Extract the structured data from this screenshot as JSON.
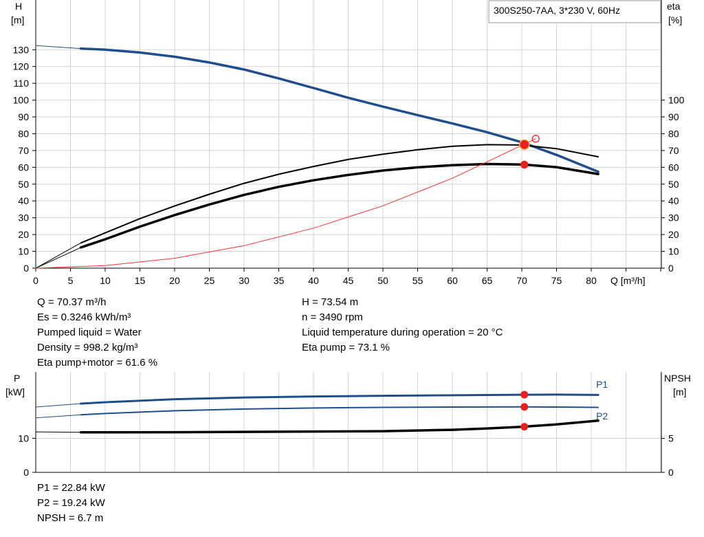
{
  "chart_data": [
    {
      "type": "line",
      "title": "300S250-7AA, 3*230 V, 60Hz",
      "xlabel": "Q [m³/h]",
      "ylabel_left": [
        "H",
        "[m]"
      ],
      "ylabel_right": [
        "eta",
        "[%]"
      ],
      "xlim": [
        0,
        87
      ],
      "ylim_left": [
        0,
        130
      ],
      "ylim_right": [
        0,
        100
      ],
      "grid": true,
      "x_ticks": [
        0,
        5,
        10,
        15,
        20,
        25,
        30,
        35,
        40,
        45,
        50,
        55,
        60,
        65,
        70,
        75,
        80
      ],
      "y_ticks_left": [
        0,
        10,
        20,
        30,
        40,
        50,
        60,
        70,
        80,
        90,
        100,
        110,
        120,
        130
      ],
      "y_ticks_right": [
        0,
        10,
        20,
        30,
        40,
        50,
        60,
        70,
        80,
        90,
        100
      ],
      "series": [
        {
          "axis": "left",
          "color": "#1f4e8c",
          "width": 3.5,
          "x": [
            6.5,
            10,
            15,
            20,
            25,
            30,
            35,
            40,
            45,
            50,
            55,
            60,
            65,
            70,
            75,
            81
          ],
          "y": [
            130.7,
            130,
            128.3,
            125.8,
            122.4,
            118.2,
            112.9,
            107.2,
            101.4,
            96.1,
            91.1,
            86.1,
            80.9,
            74.9,
            67.4,
            57.4
          ],
          "ext_x": [
            0,
            6.5
          ],
          "ext_y": [
            132.5,
            130.7
          ]
        },
        {
          "axis": "right",
          "color": "#000000",
          "width": 2,
          "x": [
            6.5,
            10,
            15,
            20,
            25,
            30,
            35,
            40,
            45,
            50,
            55,
            60,
            65,
            70,
            75,
            81
          ],
          "y": [
            15,
            21,
            29.5,
            37,
            44,
            50.5,
            55.9,
            60.5,
            64.7,
            67.8,
            70.5,
            72.5,
            73.5,
            73.3,
            71.1,
            66.3
          ],
          "ext_x": [
            0,
            6.5
          ],
          "ext_y": [
            0,
            15
          ]
        },
        {
          "axis": "right",
          "color": "#000000",
          "width": 3.5,
          "x": [
            6.5,
            10,
            15,
            20,
            25,
            30,
            35,
            40,
            45,
            50,
            55,
            60,
            65,
            70,
            75,
            81
          ],
          "y": [
            12.3,
            17.2,
            24.7,
            31.6,
            37.9,
            43.6,
            48.4,
            52.3,
            55.5,
            58.1,
            60,
            61.3,
            62,
            61.7,
            60.1,
            56
          ],
          "ext_x": [
            0,
            6.5
          ],
          "ext_y": [
            0,
            12.3
          ]
        },
        {
          "axis": "left",
          "color": "#ff3030",
          "width": 1,
          "x": [
            0,
            10,
            20,
            30,
            40,
            50,
            60,
            72
          ],
          "y": [
            0,
            1.5,
            5.9,
            13.4,
            23.8,
            37.1,
            53.5,
            77
          ]
        }
      ],
      "markers": [
        {
          "axis": "left",
          "x": 70.37,
          "y": 73.54,
          "fill": "#e8201e",
          "stroke": "#ffaa44",
          "r": 7
        },
        {
          "axis": "right",
          "x": 70.37,
          "y": 61.6,
          "fill": "#e8201e",
          "r": 5
        },
        {
          "axis": "right",
          "x": 72,
          "y": 77,
          "fill": "none",
          "stroke": "#ff3030",
          "r": 5
        }
      ]
    },
    {
      "type": "line",
      "xlim": [
        0,
        87
      ],
      "ylabel_left": [
        "P",
        "[kW]"
      ],
      "ylabel_right": [
        "NPSH",
        "[m]"
      ],
      "ylim_left": [
        0,
        30
      ],
      "ylim_right": [
        0,
        15
      ],
      "grid": true,
      "y_ticks_left": [
        0,
        10
      ],
      "y_ticks_right": [
        0,
        5
      ],
      "series": [
        {
          "axis": "left",
          "color": "#1f4e8c",
          "width": 3,
          "label": "P1",
          "x": [
            6.5,
            10,
            20,
            30,
            40,
            50,
            60,
            70,
            75,
            81
          ],
          "y": [
            20.2,
            20.6,
            21.5,
            22,
            22.3,
            22.5,
            22.65,
            22.8,
            22.84,
            22.75
          ],
          "ext_x": [
            0,
            6.5
          ],
          "ext_y": [
            19.2,
            20.2
          ]
        },
        {
          "axis": "left",
          "color": "#1f4e8c",
          "width": 2,
          "label": "P2",
          "x": [
            6.5,
            10,
            20,
            30,
            40,
            50,
            60,
            70,
            75,
            81
          ],
          "y": [
            16.9,
            17.3,
            18.1,
            18.6,
            18.9,
            19.1,
            19.2,
            19.24,
            19.2,
            19.1
          ],
          "ext_x": [
            0,
            6.5
          ],
          "ext_y": [
            16,
            16.9
          ]
        },
        {
          "axis": "right",
          "color": "#000000",
          "width": 3.5,
          "x": [
            6.5,
            20,
            30,
            40,
            50,
            60,
            65,
            70,
            75,
            81
          ],
          "y": [
            5.88,
            5.9,
            5.95,
            6,
            6.05,
            6.25,
            6.45,
            6.7,
            7.05,
            7.6
          ],
          "ext_x": [
            0,
            6.5
          ],
          "ext_y": [
            5.95,
            5.88
          ]
        }
      ],
      "markers": [
        {
          "axis": "left",
          "x": 70.37,
          "y": 22.84,
          "fill": "#e8201e",
          "r": 5
        },
        {
          "axis": "left",
          "x": 70.37,
          "y": 19.24,
          "fill": "#e8201e",
          "r": 5
        },
        {
          "axis": "right",
          "x": 70.37,
          "y": 6.7,
          "fill": "#e8201e",
          "r": 5
        }
      ],
      "series_labels": [
        {
          "text": "P1",
          "x": 81,
          "y": 22.84,
          "color": "#1f4e8c"
        },
        {
          "text": "P2",
          "x": 81,
          "y": 19.24,
          "color": "#1f4e8c"
        }
      ]
    }
  ],
  "info_top_left": [
    "Q = 70.37 m³/h",
    "Es = 0.3246 kWh/m³",
    "Pumped liquid = Water",
    "Density = 998.2 kg/m³",
    "Eta pump+motor = 61.6 %"
  ],
  "info_top_right": [
    "H = 73.54 m",
    "n = 3490 rpm",
    "Liquid temperature during operation = 20 °C",
    "Eta pump = 73.1 %"
  ],
  "info_bottom": [
    "P1 = 22.84 kW",
    "P2 = 19.24 kW",
    "NPSH = 6.7 m"
  ]
}
